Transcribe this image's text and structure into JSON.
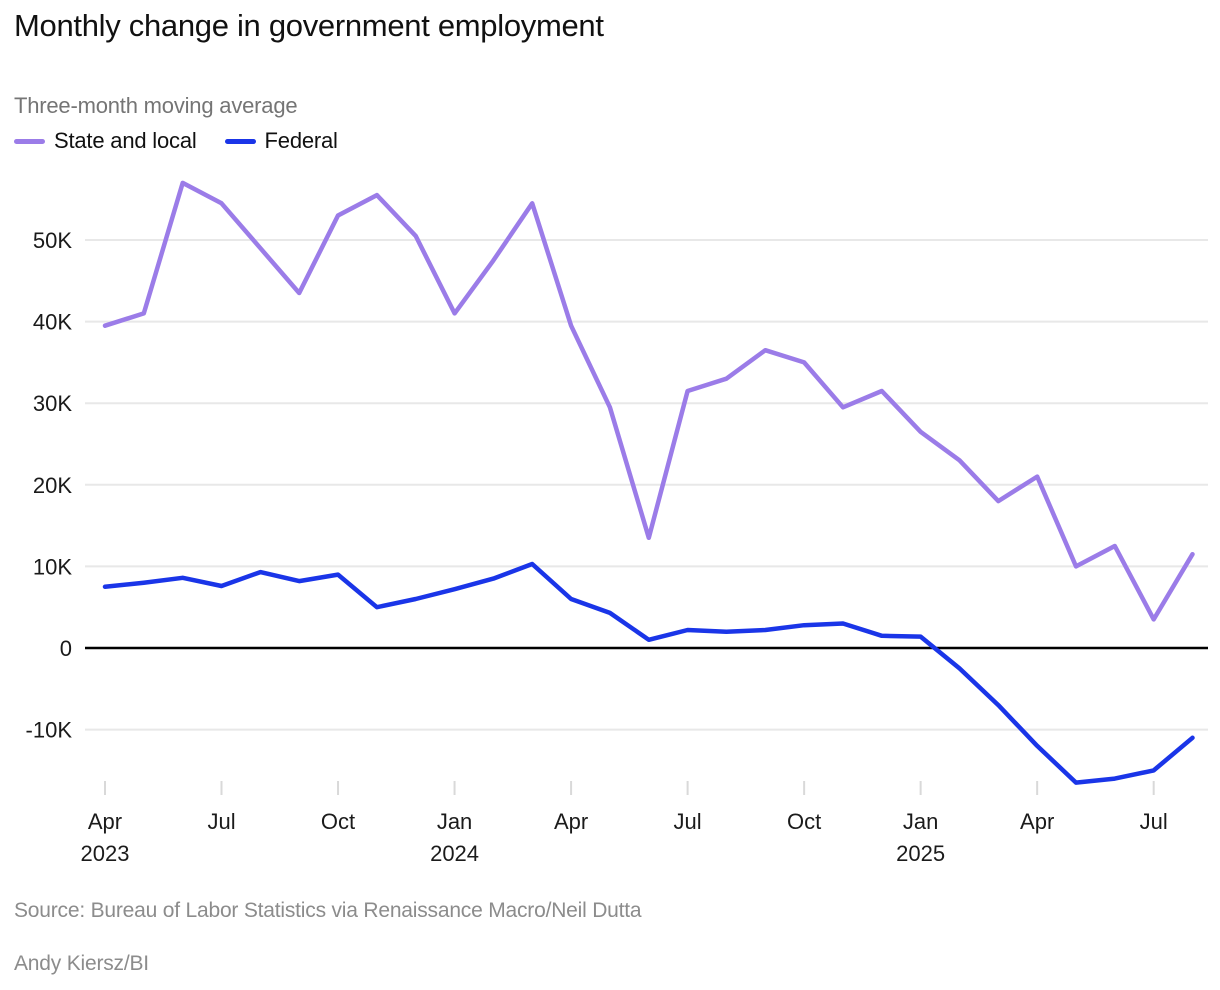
{
  "title": "Monthly change in government employment",
  "subtitle": "Three-month moving average",
  "legend": {
    "items": [
      {
        "label": "State and local",
        "color": "#9b7ce8"
      },
      {
        "label": "Federal",
        "color": "#1a35e8"
      }
    ]
  },
  "footer": {
    "source": "Source: Bureau of Labor Statistics via Renaissance Macro/Neil Dutta",
    "byline": "Andy Kiersz/BI"
  },
  "chart_data": {
    "type": "line",
    "title": "Monthly change in government employment",
    "subtitle": "Three-month moving average",
    "x_interval": "monthly",
    "x_start": "Apr 2023",
    "x_end": "Aug 2025",
    "grid": "horizontal",
    "zero_line": true,
    "legend_position": "top-left",
    "ylim": [
      -19000,
      59000
    ],
    "y_ticks": [
      {
        "label": "50K",
        "value": 50000
      },
      {
        "label": "40K",
        "value": 40000
      },
      {
        "label": "30K",
        "value": 30000
      },
      {
        "label": "20K",
        "value": 20000
      },
      {
        "label": "10K",
        "value": 10000
      },
      {
        "label": "0",
        "value": 0
      },
      {
        "label": "-10K",
        "value": -10000
      }
    ],
    "x_ticks": [
      {
        "month": "Apr",
        "year": "2023"
      },
      {
        "month": "Jul",
        "year": ""
      },
      {
        "month": "Oct",
        "year": ""
      },
      {
        "month": "Jan",
        "year": "2024"
      },
      {
        "month": "Apr",
        "year": ""
      },
      {
        "month": "Jul",
        "year": ""
      },
      {
        "month": "Oct",
        "year": ""
      },
      {
        "month": "Jan",
        "year": "2025"
      },
      {
        "month": "Apr",
        "year": ""
      },
      {
        "month": "Jul",
        "year": ""
      }
    ],
    "x_tick_every_months": 3,
    "months": [
      "Apr 2023",
      "May 2023",
      "Jun 2023",
      "Jul 2023",
      "Aug 2023",
      "Sep 2023",
      "Oct 2023",
      "Nov 2023",
      "Dec 2023",
      "Jan 2024",
      "Feb 2024",
      "Mar 2024",
      "Apr 2024",
      "May 2024",
      "Jun 2024",
      "Jul 2024",
      "Aug 2024",
      "Sep 2024",
      "Oct 2024",
      "Nov 2024",
      "Dec 2024",
      "Jan 2025",
      "Feb 2025",
      "Mar 2025",
      "Apr 2025",
      "May 2025",
      "Jun 2025",
      "Jul 2025",
      "Aug 2025"
    ],
    "series": [
      {
        "name": "State and local",
        "color": "#9b7ce8",
        "values": [
          39500,
          41000,
          57000,
          54500,
          49000,
          43500,
          53000,
          55500,
          50500,
          41000,
          47500,
          54500,
          39500,
          29500,
          13500,
          31500,
          33000,
          36500,
          35000,
          29500,
          31500,
          26500,
          23000,
          18000,
          21000,
          10000,
          12500,
          3500,
          11500
        ]
      },
      {
        "name": "Federal",
        "color": "#1a35e8",
        "values": [
          7500,
          8000,
          8600,
          7600,
          9300,
          8200,
          9000,
          5000,
          6000,
          7200,
          8500,
          10300,
          6000,
          4300,
          1000,
          2200,
          2000,
          2200,
          2800,
          3000,
          1500,
          1400,
          -2500,
          -7000,
          -12000,
          -16500,
          -16000,
          -15000,
          -11000
        ]
      }
    ]
  }
}
